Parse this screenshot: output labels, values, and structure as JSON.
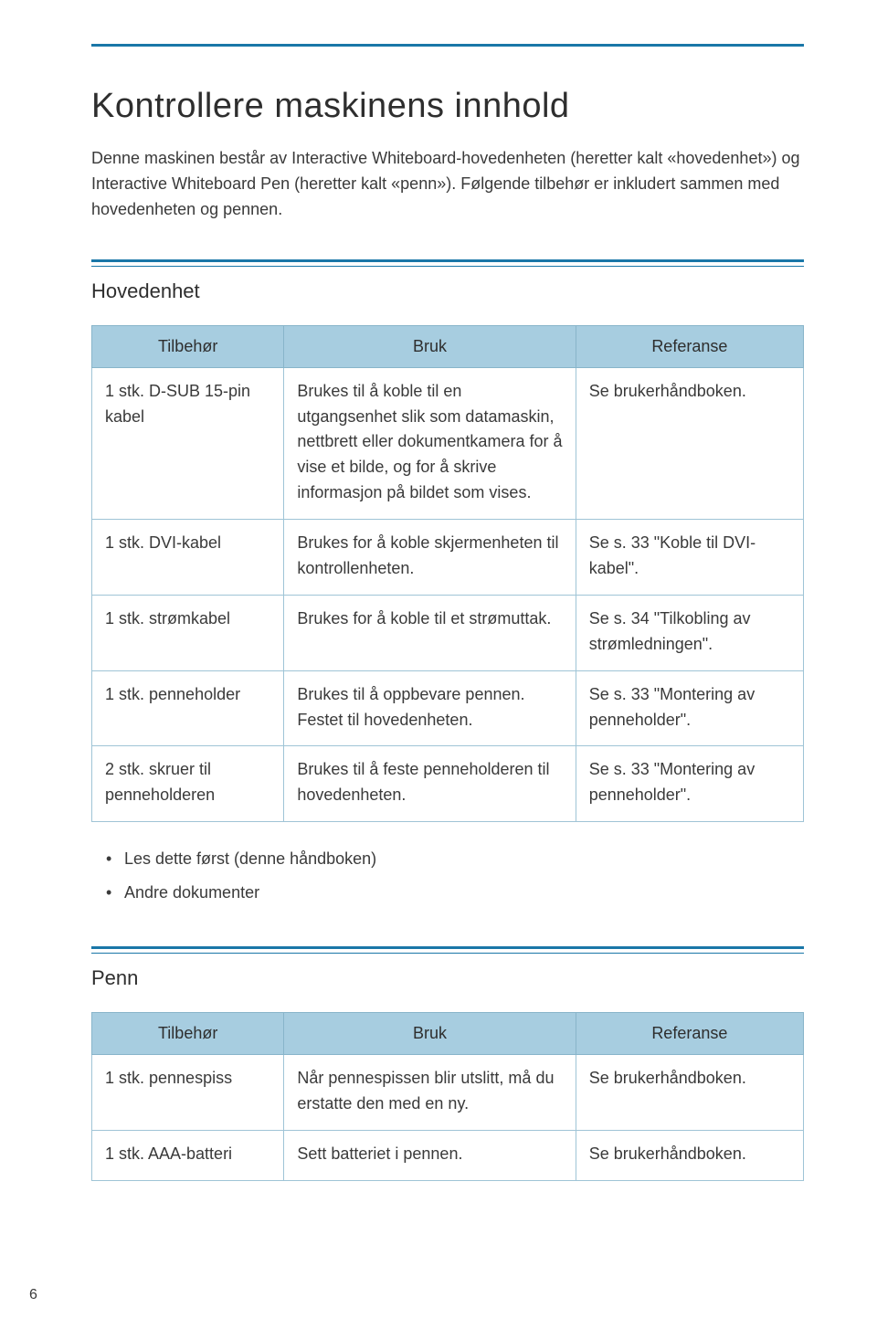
{
  "colors": {
    "rule": "#1a77a8",
    "header_bg": "#a7cde0",
    "border": "#9fc4d6",
    "text": "#3a3a3a"
  },
  "page_number": "6",
  "title": "Kontrollere maskinens innhold",
  "intro": "Denne maskinen består av Interactive Whiteboard-hovedenheten (heretter kalt «hovedenhet») og Interactive Whiteboard Pen (heretter kalt «penn»). Følgende tilbehør er inkludert sammen med hovedenheten og pennen.",
  "section1": {
    "heading": "Hovedenhet",
    "headers": [
      "Tilbehør",
      "Bruk",
      "Referanse"
    ],
    "rows": [
      {
        "a": "1 stk. D-SUB 15-pin kabel",
        "b": "Brukes til å koble til en utgangsenhet slik som datamaskin, nettbrett eller dokumentkamera for å vise et bilde, og for å skrive informasjon på bildet som vises.",
        "c": "Se brukerhåndboken."
      },
      {
        "a": "1 stk. DVI-kabel",
        "b": "Brukes for å koble skjermenheten til kontrollenheten.",
        "c": "Se s. 33 \"Koble til DVI-kabel\"."
      },
      {
        "a": "1 stk. strømkabel",
        "b": "Brukes for å koble til et strømuttak.",
        "c": "Se s. 34 \"Tilkobling av strømledningen\"."
      },
      {
        "a": "1 stk. penneholder",
        "b": "Brukes til å oppbevare pennen. Festet til hovedenheten.",
        "c": "Se s. 33 \"Montering av penneholder\"."
      },
      {
        "a": "2 stk. skruer til penneholderen",
        "b": "Brukes til å feste penneholderen til hovedenheten.",
        "c": "Se s. 33 \"Montering av penneholder\"."
      }
    ],
    "bullets": [
      "Les dette først (denne håndboken)",
      "Andre dokumenter"
    ]
  },
  "section2": {
    "heading": "Penn",
    "headers": [
      "Tilbehør",
      "Bruk",
      "Referanse"
    ],
    "rows": [
      {
        "a": "1 stk. pennespiss",
        "b": "Når pennespissen blir utslitt, må du erstatte den med en ny.",
        "c": "Se brukerhåndboken."
      },
      {
        "a": "1 stk. AAA-batteri",
        "b": "Sett batteriet i pennen.",
        "c": "Se brukerhåndboken."
      }
    ]
  }
}
